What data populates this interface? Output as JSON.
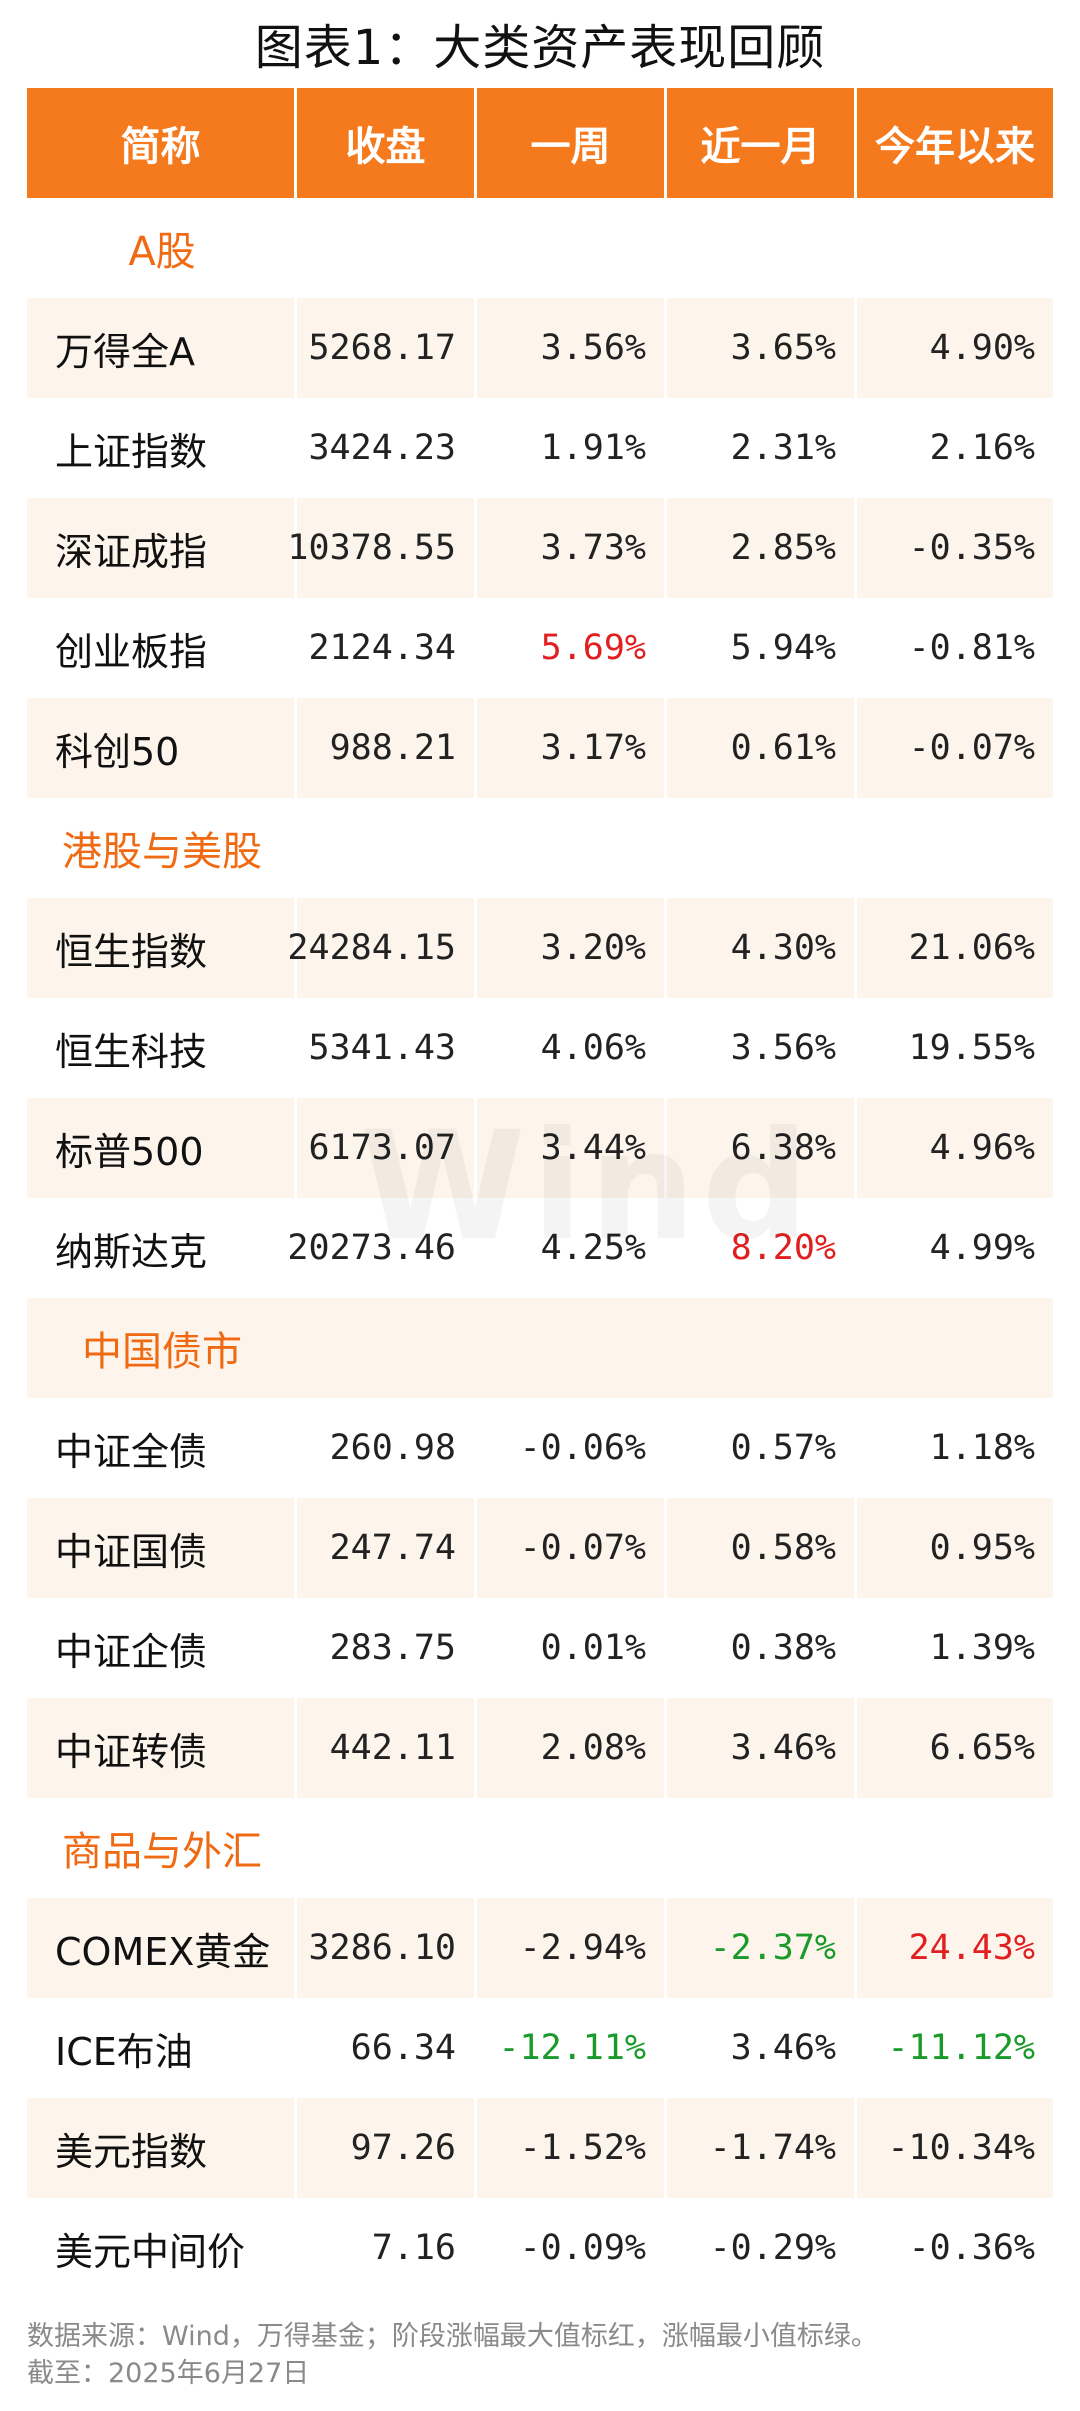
{
  "title": "图表1：大类资产表现回顾",
  "columns": [
    "简称",
    "收盘",
    "一周",
    "近一月",
    "今年以来"
  ],
  "sections": [
    {
      "name": "A股",
      "rows": [
        {
          "name": "万得全A",
          "close": "5268.17",
          "week": "3.56%",
          "month": "3.65%",
          "ytd": "4.90%"
        },
        {
          "name": "上证指数",
          "close": "3424.23",
          "week": "1.91%",
          "month": "2.31%",
          "ytd": "2.16%"
        },
        {
          "name": "深证成指",
          "close": "10378.55",
          "week": "3.73%",
          "month": "2.85%",
          "ytd": "-0.35%"
        },
        {
          "name": "创业板指",
          "close": "2124.34",
          "week": "5.69%",
          "month": "5.94%",
          "ytd": "-0.81%"
        },
        {
          "name": "科创50",
          "close": "988.21",
          "week": "3.17%",
          "month": "0.61%",
          "ytd": "-0.07%"
        }
      ]
    },
    {
      "name": "港股与美股",
      "rows": [
        {
          "name": "恒生指数",
          "close": "24284.15",
          "week": "3.20%",
          "month": "4.30%",
          "ytd": "21.06%"
        },
        {
          "name": "恒生科技",
          "close": "5341.43",
          "week": "4.06%",
          "month": "3.56%",
          "ytd": "19.55%"
        },
        {
          "name": "标普500",
          "close": "6173.07",
          "week": "3.44%",
          "month": "6.38%",
          "ytd": "4.96%"
        },
        {
          "name": "纳斯达克",
          "close": "20273.46",
          "week": "4.25%",
          "month": "8.20%",
          "ytd": "4.99%"
        }
      ]
    },
    {
      "name": "中国债市",
      "rows": [
        {
          "name": "中证全债",
          "close": "260.98",
          "week": "-0.06%",
          "month": "0.57%",
          "ytd": "1.18%"
        },
        {
          "name": "中证国债",
          "close": "247.74",
          "week": "-0.07%",
          "month": "0.58%",
          "ytd": "0.95%"
        },
        {
          "name": "中证企债",
          "close": "283.75",
          "week": "0.01%",
          "month": "0.38%",
          "ytd": "1.39%"
        },
        {
          "name": "中证转债",
          "close": "442.11",
          "week": "2.08%",
          "month": "3.46%",
          "ytd": "6.65%"
        }
      ]
    },
    {
      "name": "商品与外汇",
      "rows": [
        {
          "name": "COMEX黄金",
          "close": "3286.10",
          "week": "-2.94%",
          "month": "-2.37%",
          "ytd": "24.43%"
        },
        {
          "name": "ICE布油",
          "close": "66.34",
          "week": "-12.11%",
          "month": "3.46%",
          "ytd": "-11.12%"
        },
        {
          "name": "美元指数",
          "close": "97.26",
          "week": "-1.52%",
          "month": "-1.74%",
          "ytd": "-10.34%"
        },
        {
          "name": "美元中间价",
          "close": "7.16",
          "week": "-0.09%",
          "month": "-0.29%",
          "ytd": "-0.36%"
        }
      ]
    }
  ],
  "highlights": {
    "max_color": "#e02020",
    "min_color": "#1a9a2a",
    "max_cells": [
      "week",
      "month",
      "ytd"
    ],
    "min_cells": [
      "month",
      "week",
      "ytd"
    ]
  },
  "watermark": "Wind",
  "footer": {
    "source": "数据来源：Wind，万得基金；阶段涨幅最大值标红，涨幅最小值标绿。",
    "date": "截至：2025年6月27日"
  }
}
